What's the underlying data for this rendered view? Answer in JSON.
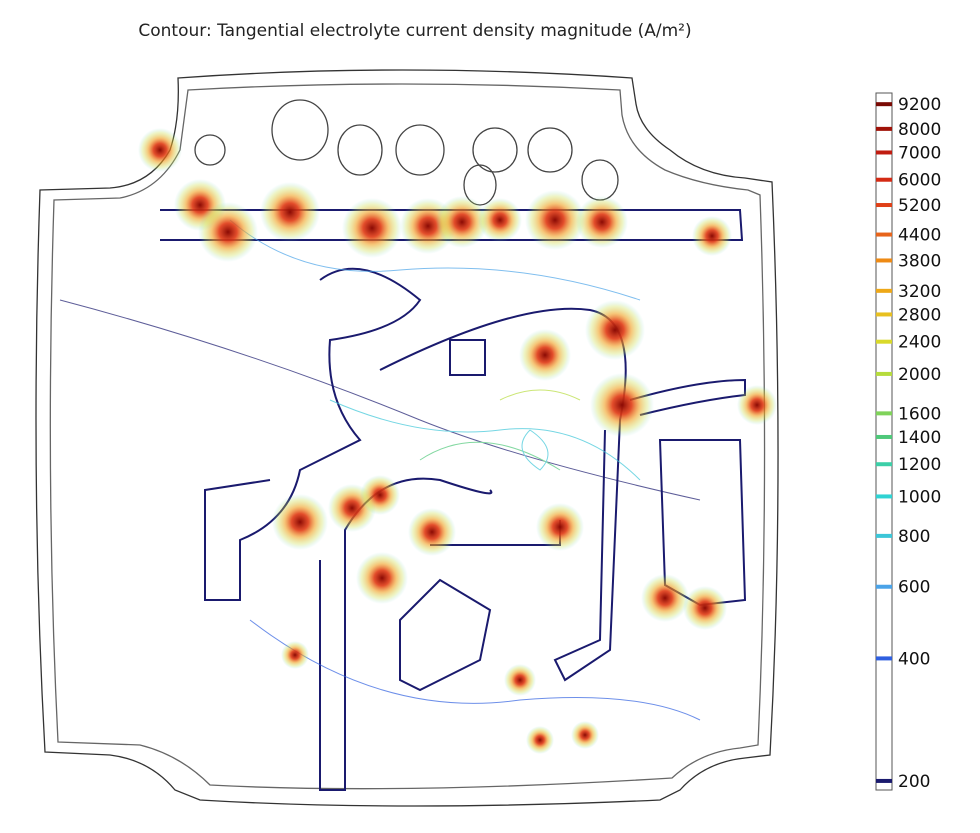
{
  "chart_data": {
    "type": "contour",
    "title": "Contour: Tangential electrolyte current density magnitude (A/m²)",
    "colorbar": {
      "scale": "log",
      "ylim": [
        190,
        9800
      ],
      "yticks": [
        200,
        400,
        600,
        800,
        1000,
        1200,
        1400,
        1600,
        2000,
        2400,
        2800,
        3200,
        3800,
        4400,
        5200,
        6000,
        7000,
        8000,
        9200
      ],
      "colors": [
        "#1a1a6e",
        "#2f5fe0",
        "#4aa3e8",
        "#3cc6d8",
        "#2fd3d3",
        "#3ccfa8",
        "#4fc87a",
        "#7fd35a",
        "#b6dc3c",
        "#d9d92a",
        "#e8c020",
        "#eea818",
        "#ee8a14",
        "#e8641a",
        "#e04018",
        "#d42a14",
        "#c01c10",
        "#a01208",
        "#7a0a04"
      ]
    }
  }
}
